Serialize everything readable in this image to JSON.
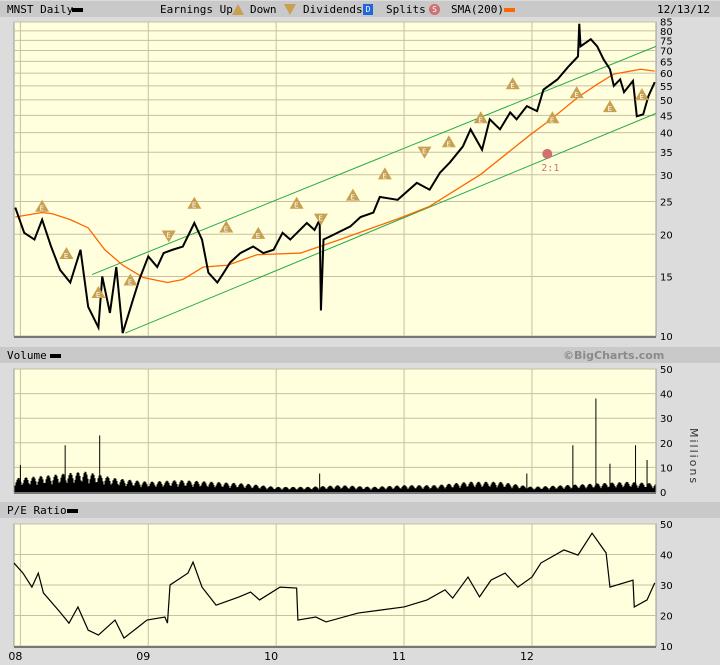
{
  "header": {
    "symbol_label": "MNST Daily",
    "earnings_label": "Earnings Up",
    "down_label": "Down",
    "dividends_label": "Dividends",
    "dividends_icon_letter": "D",
    "splits_label": "Splits",
    "splits_icon_letter": "S",
    "sma_label": "SMA(200)",
    "date": "12/13/12"
  },
  "volume_panel": {
    "title": "Volume",
    "copyright": "©BigCharts.com",
    "unit_label": "Millions"
  },
  "pe_panel": {
    "title": "P/E Ratio"
  },
  "colors": {
    "price": "#000000",
    "sma": "#ff6600",
    "channel": "#22aa44",
    "earnings": "#c8a050",
    "split": "#d07070",
    "dividend": "#2266dd",
    "panel_bg": "#ffffdd",
    "grid": "#c8c0a0"
  },
  "chart_data": [
    {
      "type": "line",
      "title": "",
      "scale": "log",
      "xlim": [
        2007.95,
        2012.97
      ],
      "ylim": [
        10,
        85
      ],
      "x_ticks": [
        {
          "value": 2008,
          "label": "08"
        },
        {
          "value": 2009,
          "label": "09"
        },
        {
          "value": 2010,
          "label": "10"
        },
        {
          "value": 2011,
          "label": "11"
        },
        {
          "value": 2012,
          "label": "12"
        }
      ],
      "y_ticks": [
        10,
        15,
        20,
        25,
        30,
        35,
        40,
        45,
        50,
        55,
        60,
        65,
        70,
        75,
        80,
        85
      ],
      "grid": true,
      "series": [
        {
          "key": "price",
          "x": [
            2007.96,
            2008.03,
            2008.11,
            2008.17,
            2008.24,
            2008.31,
            2008.39,
            2008.47,
            2008.53,
            2008.61,
            2008.64,
            2008.7,
            2008.75,
            2008.8,
            2008.88,
            2008.93,
            2009.0,
            2009.07,
            2009.12,
            2009.19,
            2009.27,
            2009.36,
            2009.42,
            2009.47,
            2009.54,
            2009.59,
            2009.64,
            2009.72,
            2009.82,
            2009.9,
            2009.98,
            2010.05,
            2010.11,
            2010.24,
            2010.3,
            2010.34,
            2010.35,
            2010.37,
            2010.42,
            2010.58,
            2010.66,
            2010.76,
            2010.81,
            2010.95,
            2011.1,
            2011.2,
            2011.28,
            2011.36,
            2011.46,
            2011.52,
            2011.61,
            2011.67,
            2011.75,
            2011.83,
            2011.88,
            2011.96,
            2012.04,
            2012.09,
            2012.2,
            2012.28,
            2012.36,
            2012.37,
            2012.38,
            2012.46,
            2012.51,
            2012.56,
            2012.61,
            2012.64,
            2012.69,
            2012.72,
            2012.79,
            2012.82,
            2012.87,
            2012.91,
            2012.96
          ],
          "y": [
            24.0,
            20.2,
            19.3,
            22.1,
            18.4,
            15.7,
            14.4,
            18.0,
            12.2,
            10.6,
            15.0,
            11.7,
            16.0,
            10.2,
            12.8,
            14.7,
            17.2,
            16.0,
            17.6,
            18.0,
            18.4,
            21.6,
            19.3,
            15.4,
            14.4,
            15.4,
            16.5,
            17.6,
            18.4,
            17.6,
            18.0,
            20.2,
            19.3,
            21.6,
            20.6,
            22.1,
            11.9,
            19.3,
            19.7,
            21.1,
            22.5,
            23.2,
            25.8,
            25.3,
            28.4,
            27.1,
            30.4,
            32.7,
            36.4,
            40.9,
            35.6,
            43.8,
            40.9,
            45.9,
            43.8,
            47.9,
            46.3,
            53.6,
            57.5,
            62.4,
            67.2,
            84.0,
            72.0,
            75.6,
            72.0,
            65.9,
            61.6,
            55.0,
            57.5,
            52.7,
            56.9,
            44.7,
            45.3,
            51.2,
            56.4
          ]
        },
        {
          "key": "sma",
          "name": "SMA(200)",
          "x": [
            2007.96,
            2008.17,
            2008.25,
            2008.39,
            2008.53,
            2008.66,
            2008.8,
            2008.96,
            2009.15,
            2009.27,
            2009.43,
            2009.62,
            2009.85,
            2010.19,
            2010.5,
            2010.99,
            2011.2,
            2011.6,
            2011.99,
            2012.15,
            2012.36,
            2012.51,
            2012.64,
            2012.85,
            2012.96
          ],
          "y": [
            22.5,
            23.2,
            23.0,
            22.1,
            20.9,
            18.0,
            16.2,
            14.9,
            14.4,
            14.7,
            16.0,
            16.2,
            17.4,
            17.6,
            19.3,
            22.5,
            24.2,
            30.1,
            39.5,
            43.8,
            50.9,
            55.6,
            59.6,
            61.6,
            60.8
          ]
        },
        {
          "key": "channel_upper",
          "x": [
            2008.56,
            2012.97
          ],
          "y": [
            15.2,
            72
          ]
        },
        {
          "key": "channel_lower",
          "x": [
            2008.82,
            2012.97
          ],
          "y": [
            10.2,
            45.6
          ]
        }
      ],
      "earnings": [
        {
          "x": 2008.17,
          "y": 24.3,
          "dir": "up"
        },
        {
          "x": 2008.36,
          "y": 17.6,
          "dir": "up"
        },
        {
          "x": 2008.61,
          "y": 13.5,
          "dir": "up"
        },
        {
          "x": 2008.86,
          "y": 14.7,
          "dir": "up"
        },
        {
          "x": 2009.16,
          "y": 19.7,
          "dir": "down"
        },
        {
          "x": 2009.36,
          "y": 24.8,
          "dir": "up"
        },
        {
          "x": 2009.61,
          "y": 21.1,
          "dir": "up"
        },
        {
          "x": 2009.86,
          "y": 20.2,
          "dir": "up"
        },
        {
          "x": 2010.16,
          "y": 24.8,
          "dir": "up"
        },
        {
          "x": 2010.35,
          "y": 22.1,
          "dir": "down"
        },
        {
          "x": 2010.6,
          "y": 26.2,
          "dir": "up"
        },
        {
          "x": 2010.85,
          "y": 30.3,
          "dir": "up"
        },
        {
          "x": 2011.16,
          "y": 34.9,
          "dir": "down"
        },
        {
          "x": 2011.35,
          "y": 37.7,
          "dir": "up"
        },
        {
          "x": 2011.6,
          "y": 44.4,
          "dir": "up"
        },
        {
          "x": 2011.85,
          "y": 56.0,
          "dir": "up"
        },
        {
          "x": 2012.16,
          "y": 44.4,
          "dir": "up"
        },
        {
          "x": 2012.35,
          "y": 52.7,
          "dir": "up"
        },
        {
          "x": 2012.61,
          "y": 47.9,
          "dir": "up"
        },
        {
          "x": 2012.86,
          "y": 52.0,
          "dir": "up"
        }
      ],
      "splits": [
        {
          "x": 2012.12,
          "y": 34.6,
          "label": "2:1"
        }
      ]
    },
    {
      "type": "bar",
      "title": "Volume",
      "ylabel": "Millions",
      "xlim": [
        2007.95,
        2012.97
      ],
      "ylim": [
        0,
        50
      ],
      "y_ticks": [
        0,
        10,
        20,
        30,
        40,
        50
      ],
      "baseline": {
        "x": [
          2007.96,
          2008.25,
          2008.5,
          2008.75,
          2009.0,
          2009.25,
          2009.5,
          2009.75,
          2010.0,
          2010.25,
          2010.5,
          2010.75,
          2011.0,
          2011.25,
          2011.5,
          2011.75,
          2012.0,
          2012.25,
          2012.5,
          2012.75,
          2012.96
        ],
        "y": [
          4,
          5,
          6,
          4,
          3,
          3.5,
          3,
          2.5,
          1.5,
          1.5,
          2,
          1.5,
          2,
          2,
          3,
          3,
          1.5,
          2,
          2.5,
          3,
          2.5
        ]
      },
      "spikes": {
        "x": [
          2008.0,
          2008.35,
          2008.62,
          2010.34,
          2011.96,
          2012.32,
          2012.5,
          2012.61,
          2012.81,
          2012.9
        ],
        "y": [
          11,
          19,
          23,
          7.5,
          7.5,
          19,
          38,
          11.5,
          19,
          13
        ]
      }
    },
    {
      "type": "line",
      "title": "P/E Ratio",
      "xlim": [
        2007.95,
        2012.97
      ],
      "ylim": [
        10,
        50
      ],
      "y_ticks": [
        10,
        20,
        30,
        40,
        50
      ],
      "x": [
        2007.95,
        2008.02,
        2008.09,
        2008.14,
        2008.18,
        2008.31,
        2008.38,
        2008.45,
        2008.53,
        2008.61,
        2008.74,
        2008.81,
        2008.92,
        2008.99,
        2009.13,
        2009.15,
        2009.17,
        2009.31,
        2009.35,
        2009.42,
        2009.53,
        2009.71,
        2009.8,
        2009.87,
        2010.03,
        2010.16,
        2010.17,
        2010.31,
        2010.39,
        2010.64,
        2010.82,
        2011.0,
        2011.18,
        2011.32,
        2011.38,
        2011.5,
        2011.59,
        2011.68,
        2011.79,
        2011.89,
        2012.0,
        2012.07,
        2012.25,
        2012.36,
        2012.47,
        2012.58,
        2012.61,
        2012.79,
        2012.8,
        2012.9,
        2012.96
      ],
      "y": [
        37.2,
        33.9,
        29.3,
        33.9,
        27.4,
        21.1,
        17.5,
        22.8,
        15.2,
        13.6,
        18.5,
        12.6,
        16.2,
        18.5,
        19.5,
        17.5,
        30.0,
        33.9,
        37.5,
        29.3,
        23.4,
        26.1,
        27.7,
        25.1,
        29.3,
        29.0,
        18.5,
        19.5,
        17.9,
        20.8,
        21.8,
        22.8,
        25.1,
        28.4,
        25.7,
        32.6,
        26.1,
        31.6,
        33.9,
        29.3,
        32.6,
        37.2,
        41.5,
        39.8,
        47.0,
        40.5,
        29.3,
        31.6,
        22.8,
        25.1,
        30.7
      ]
    }
  ]
}
